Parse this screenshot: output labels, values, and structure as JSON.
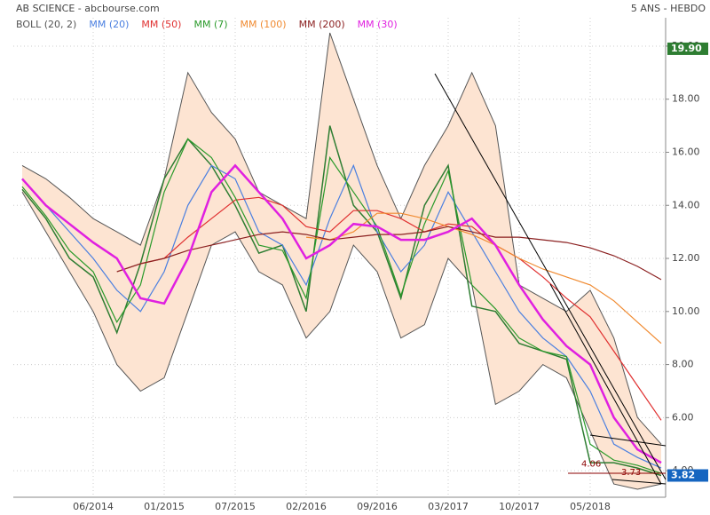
{
  "chart_data": {
    "type": "line",
    "title": "AB SCIENCE - abcbourse.com",
    "subtitle": "5 ANS - HEBDO",
    "categories": [
      null,
      null,
      null,
      "06/2014",
      null,
      null,
      "01/2015",
      null,
      null,
      "07/2015",
      null,
      null,
      "02/2016",
      null,
      null,
      "09/2016",
      null,
      null,
      "03/2017",
      null,
      null,
      "10/2017",
      null,
      null,
      "05/2018",
      null,
      null,
      null
    ],
    "values": [
      14.6,
      13.5,
      12.0,
      11.3,
      9.2,
      11.8,
      15.0,
      16.5,
      15.5,
      14.0,
      12.2,
      12.5,
      10.0,
      17.0,
      14.0,
      13.0,
      10.5,
      14.0,
      15.5,
      10.2,
      10.0,
      8.8,
      8.5,
      8.2,
      4.3,
      4.3,
      4.1,
      3.82
    ],
    "color": "#2e7d32",
    "band": {
      "name": "BOLL (20, 2)",
      "color": "#555555",
      "fill": "#fde4d2",
      "upper": [
        15.5,
        15.0,
        14.3,
        13.5,
        13.0,
        12.5,
        15.0,
        19.0,
        17.5,
        16.5,
        14.5,
        14.0,
        13.5,
        20.5,
        18.0,
        15.5,
        13.5,
        15.5,
        17.0,
        19.0,
        17.0,
        11.0,
        10.5,
        10.0,
        10.8,
        9.0,
        6.0,
        5.0
      ],
      "lower": [
        14.5,
        13.0,
        11.5,
        10.0,
        8.0,
        7.0,
        7.5,
        10.0,
        12.5,
        13.0,
        11.5,
        11.0,
        9.0,
        10.0,
        12.5,
        11.5,
        9.0,
        9.5,
        12.0,
        11.0,
        6.5,
        7.0,
        8.0,
        7.5,
        5.5,
        3.5,
        3.3,
        3.5
      ]
    },
    "series": [
      {
        "name": "MM (20)",
        "color": "#4a7fe0",
        "values": [
          15.0,
          14.0,
          13.0,
          12.0,
          10.8,
          10.0,
          11.5,
          14.0,
          15.5,
          15.0,
          13.0,
          12.5,
          11.0,
          13.5,
          15.5,
          13.0,
          11.5,
          12.5,
          14.5,
          13.0,
          11.5,
          10.0,
          9.0,
          8.3,
          7.0,
          5.0,
          4.5,
          4.1
        ]
      },
      {
        "name": "MM (50)",
        "color": "#e03030",
        "values": [
          null,
          null,
          null,
          null,
          null,
          11.8,
          12.0,
          12.8,
          13.5,
          14.2,
          14.3,
          14.0,
          13.2,
          13.0,
          13.8,
          13.8,
          13.5,
          13.0,
          13.3,
          13.2,
          12.5,
          12.0,
          11.3,
          10.5,
          9.8,
          8.5,
          7.2,
          5.9
        ]
      },
      {
        "name": "MM (7)",
        "color": "#2a9a2a",
        "values": [
          14.7,
          13.6,
          12.3,
          11.5,
          9.6,
          11.0,
          14.5,
          16.5,
          15.8,
          14.3,
          12.5,
          12.3,
          10.5,
          15.8,
          14.5,
          13.2,
          10.6,
          13.3,
          15.3,
          11.0,
          10.1,
          9.0,
          8.5,
          8.3,
          5.0,
          4.4,
          4.2,
          3.9
        ]
      },
      {
        "name": "MM (100)",
        "color": "#f08a30",
        "values": [
          null,
          null,
          null,
          null,
          null,
          null,
          null,
          null,
          null,
          null,
          null,
          null,
          12.8,
          12.7,
          13.0,
          13.7,
          13.7,
          13.5,
          13.2,
          12.9,
          12.5,
          12.0,
          11.6,
          11.3,
          11.0,
          10.4,
          9.6,
          8.8
        ]
      },
      {
        "name": "MM (200)",
        "color": "#8b2020",
        "values": [
          null,
          null,
          null,
          null,
          11.5,
          11.8,
          12.0,
          12.3,
          12.5,
          12.7,
          12.9,
          13.0,
          12.9,
          12.7,
          12.8,
          12.9,
          12.9,
          13.0,
          13.2,
          13.0,
          12.8,
          12.8,
          12.7,
          12.6,
          12.4,
          12.1,
          11.7,
          11.2
        ]
      },
      {
        "name": "MM (30)",
        "color": "#e020e0",
        "values": [
          15.0,
          14.0,
          13.3,
          12.6,
          12.0,
          10.5,
          10.3,
          12.0,
          14.5,
          15.5,
          14.5,
          13.5,
          12.0,
          12.5,
          13.3,
          13.2,
          12.7,
          12.7,
          13.0,
          13.5,
          12.5,
          11.0,
          9.7,
          8.7,
          8.0,
          6.0,
          4.8,
          4.3
        ]
      }
    ],
    "ylim": [
      3,
      20.5
    ],
    "yticks": [
      {
        "value": 4,
        "label": "4.00"
      },
      {
        "value": 6,
        "label": "6.00"
      },
      {
        "value": 8,
        "label": "8.00"
      },
      {
        "value": 10,
        "label": "10.00"
      },
      {
        "value": 12,
        "label": "12.00"
      },
      {
        "value": 14,
        "label": "14.00"
      },
      {
        "value": 16,
        "label": "16.00"
      },
      {
        "value": 18,
        "label": "18.00"
      },
      {
        "value": 20,
        "label": "20.00"
      }
    ],
    "grid": true,
    "high": {
      "value": 19.9,
      "label": "19.90",
      "color": "#2e7d32"
    },
    "last": {
      "value": 3.82,
      "label": "3.82",
      "color": "#1565c0"
    },
    "annotations": [
      {
        "value": 4.06,
        "label": "4.06"
      },
      {
        "value": 3.73,
        "label": "3.73"
      }
    ]
  }
}
